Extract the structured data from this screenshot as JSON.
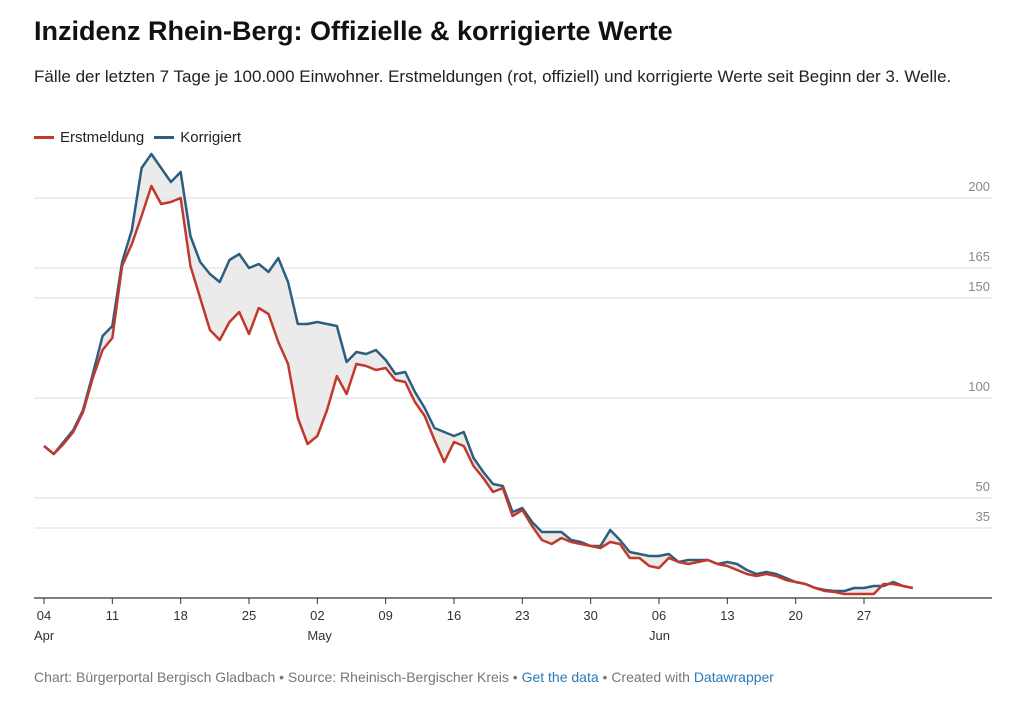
{
  "chart_data": {
    "type": "line",
    "title": "Inzidenz Rhein-Berg: Offizielle & korrigierte Werte",
    "subtitle": "Fälle der letzten 7 Tage je 100.000 Einwohner. Erstmeldungen (rot, offiziell) und korrigierte Werte seit Beginn der 3. Welle.",
    "categories": [
      "04",
      null,
      null,
      null,
      null,
      null,
      null,
      "11",
      null,
      null,
      null,
      null,
      null,
      null,
      "18",
      null,
      null,
      null,
      null,
      null,
      null,
      "25",
      null,
      null,
      null,
      null,
      null,
      null,
      "02",
      null,
      null,
      null,
      null,
      null,
      null,
      "09",
      null,
      null,
      null,
      null,
      null,
      null,
      "16",
      null,
      null,
      null,
      null,
      null,
      null,
      "23",
      null,
      null,
      null,
      null,
      null,
      null,
      "30",
      null,
      null,
      null,
      null,
      null,
      null,
      "06",
      null,
      null,
      null,
      null,
      null,
      null,
      "13",
      null,
      null,
      null,
      null,
      null,
      null,
      "20",
      null,
      null,
      null,
      null,
      null,
      null,
      "27",
      null,
      null,
      null,
      null,
      null
    ],
    "months": [
      {
        "index": 0,
        "label": "Apr"
      },
      {
        "index": 28,
        "label": "May"
      },
      {
        "index": 63,
        "label": "Jun"
      }
    ],
    "series": [
      {
        "name": "Erstmeldung",
        "color": "#c0392b",
        "values": [
          76,
          72,
          77,
          83,
          93,
          110,
          124,
          130,
          166,
          177,
          191,
          206,
          197,
          198,
          200,
          166,
          150,
          134,
          129,
          138,
          143,
          132,
          145,
          142,
          128,
          117,
          90,
          77,
          81,
          94,
          111,
          102,
          117,
          116,
          114,
          115,
          109,
          108,
          98,
          91,
          79,
          68,
          78,
          76,
          66,
          60,
          53,
          55,
          41,
          44,
          36,
          29,
          27,
          30,
          28,
          27,
          26,
          25,
          28,
          27,
          20,
          20,
          16,
          15,
          20,
          18,
          17,
          18,
          19,
          17,
          16,
          14,
          12,
          11,
          12,
          11,
          9,
          8,
          7,
          5,
          3.5,
          3,
          2,
          2,
          2,
          2,
          7,
          7,
          6,
          5
        ]
      },
      {
        "name": "Korrigiert",
        "color": "#2e5e7e",
        "values": [
          76,
          72,
          78,
          84,
          94,
          112,
          131,
          136,
          168,
          184,
          215,
          222,
          215,
          208,
          213,
          181,
          168,
          162,
          158,
          169,
          172,
          165,
          167,
          163,
          170,
          158,
          137,
          137,
          138,
          137,
          136,
          118,
          123,
          122,
          124,
          119,
          112,
          113,
          103,
          95,
          85,
          83,
          81,
          83,
          70,
          63,
          57,
          56,
          43,
          45,
          38,
          33,
          33,
          33,
          29,
          28,
          26,
          26,
          34,
          29,
          23,
          22,
          21,
          21,
          22,
          18,
          19,
          19,
          19,
          17,
          18,
          17,
          14,
          12,
          13,
          12,
          10,
          8,
          7,
          5,
          4,
          3.5,
          3.5,
          5,
          5,
          6,
          6,
          8,
          6,
          5
        ]
      }
    ],
    "ylim": [
      0,
      225
    ],
    "yticks": [
      35,
      50,
      100,
      150,
      165,
      200
    ],
    "grid": true,
    "legend": "top-left",
    "fill_between": true,
    "footer": {
      "prefix": "Chart: Bürgerportal Bergisch Gladbach • Source: Rheinisch-Bergischer Kreis •",
      "link1": "Get the data",
      "middle": "• Created with",
      "link2": "Datawrapper"
    }
  }
}
